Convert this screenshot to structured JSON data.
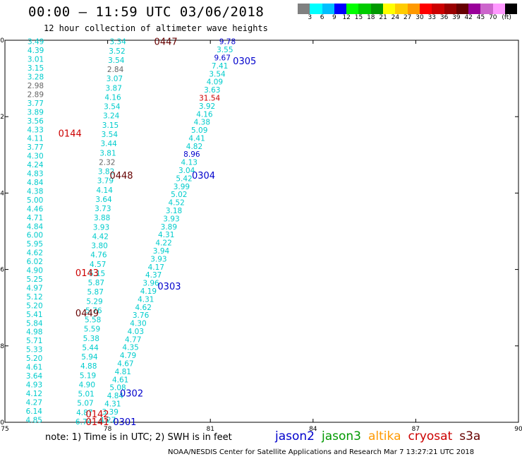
{
  "header": {
    "title": "00:00 – 11:59 UTC 03/06/2018",
    "subtitle": "12 hour collection of altimeter wave heights"
  },
  "colorbar": {
    "colors": [
      "#808080",
      "#00ffff",
      "#00bfff",
      "#0000ff",
      "#00ff00",
      "#00cc00",
      "#009900",
      "#ffff00",
      "#ffcc00",
      "#ff9900",
      "#ff0000",
      "#cc0000",
      "#990000",
      "#660000",
      "#990099",
      "#cc66cc",
      "#ff99ff",
      "#000000"
    ],
    "labels": [
      "3",
      "6",
      "9",
      "12",
      "15",
      "18",
      "21",
      "24",
      "27",
      "30",
      "33",
      "36",
      "39",
      "42",
      "45",
      "70",
      "(ft)"
    ]
  },
  "axes": {
    "x_ticks": [
      "75",
      "78",
      "81",
      "84",
      "87",
      "90"
    ],
    "y_ticks": [
      "0",
      "-2",
      "-4",
      "-6",
      "-8",
      "-10"
    ]
  },
  "chart_data": {
    "type": "scatter",
    "title": "",
    "xlabel": "",
    "ylabel": "",
    "xlim": [
      75,
      90
    ],
    "ylim": [
      -10,
      0
    ],
    "passes": [
      {
        "id": "0447",
        "color": "#660000",
        "lon": 79.7,
        "lat": -0.05
      },
      {
        "id": "0305",
        "color": "#0000cc",
        "lon": 82.0,
        "lat": -0.55
      },
      {
        "id": "0144",
        "color": "#cc0000",
        "lon": 76.9,
        "lat": -2.45
      },
      {
        "id": "0448",
        "color": "#660000",
        "lon": 78.4,
        "lat": -3.55
      },
      {
        "id": "0304",
        "color": "#0000cc",
        "lon": 80.8,
        "lat": -3.55
      },
      {
        "id": "0143",
        "color": "#cc0000",
        "lon": 77.4,
        "lat": -6.1
      },
      {
        "id": "0303",
        "color": "#0000cc",
        "lon": 79.8,
        "lat": -6.45
      },
      {
        "id": "0449",
        "color": "#660000",
        "lon": 77.4,
        "lat": -7.15
      },
      {
        "id": "0302",
        "color": "#0000cc",
        "lon": 78.7,
        "lat": -9.25
      },
      {
        "id": "0142",
        "color": "#cc0000",
        "lon": 77.7,
        "lat": -9.8
      },
      {
        "id": "0141",
        "color": "#cc0000",
        "lon": 77.7,
        "lat": -10.0
      },
      {
        "id": "0301",
        "color": "#0000cc",
        "lon": 78.5,
        "lat": -10.0
      }
    ],
    "tracks": [
      {
        "name": "track-a",
        "color": "#00cccc",
        "lon_start": 75.9,
        "lat_start": -0.05,
        "lon_end": 75.85,
        "lat_end": -9.95,
        "values": [
          "3.49",
          "4.39",
          "3.01",
          "3.15",
          "3.28",
          "2.98",
          "2.89",
          "3.77",
          "3.89",
          "3.56",
          "4.33",
          "4.11",
          "3.77",
          "4.30",
          "4.24",
          "4.83",
          "4.84",
          "4.38",
          "5.00",
          "4.46",
          "4.71",
          "4.84",
          "6.00",
          "5.95",
          "4.62",
          "6.02",
          "4.90",
          "5.25",
          "4.97",
          "5.12",
          "5.20",
          "5.41",
          "5.84",
          "4.98",
          "5.71",
          "5.33",
          "5.20",
          "4.61",
          "3.64",
          "4.93",
          "4.12",
          "4.27",
          "6.14",
          "4.85"
        ]
      },
      {
        "name": "track-b",
        "color": "#00cccc",
        "lon_start": 78.3,
        "lat_start": -0.05,
        "lon_end": 77.3,
        "lat_end": -10.0,
        "values": [
          "3.34",
          "3.52",
          "3.54",
          "2.84",
          "3.07",
          "3.87",
          "4.16",
          "3.54",
          "3.24",
          "3.15",
          "3.54",
          "3.44",
          "3.81",
          "2.32",
          "3.82",
          "3.79",
          "4.14",
          "3.64",
          "3.73",
          "3.88",
          "3.93",
          "4.42",
          "3.80",
          "4.76",
          "4.57",
          "5.15",
          "5.87",
          "5.87",
          "5.29",
          "5.76",
          "5.58",
          "5.59",
          "5.38",
          "5.44",
          "5.94",
          "4.88",
          "5.19",
          "4.90",
          "5.01",
          "5.07",
          "4.87",
          "6.74"
        ]
      },
      {
        "name": "track-c",
        "color": "#00cccc",
        "lon_start": 81.5,
        "lat_start": -0.05,
        "lon_end": 78.0,
        "lat_end": -9.95,
        "values": [
          "9.78",
          "3.55",
          "9.67",
          "7.41",
          "3.54",
          "4.09",
          "3.63",
          "31.54",
          "3.92",
          "4.16",
          "4.38",
          "5.09",
          "4.41",
          "4.82",
          "8.96",
          "4.13",
          "3.04",
          "5.42",
          "3.99",
          "5.02",
          "4.52",
          "3.18",
          "3.93",
          "3.89",
          "4.31",
          "4.22",
          "3.94",
          "3.93",
          "4.17",
          "4.37",
          "3.96",
          "4.19",
          "4.31",
          "4.62",
          "3.76",
          "4.30",
          "4.03",
          "4.77",
          "4.35",
          "4.79",
          "4.67",
          "4.81",
          "4.61",
          "5.08",
          "4.84",
          "4.31",
          "3.39",
          "4.27"
        ]
      }
    ],
    "highlight_values": {
      "31.54": "#cc0000",
      "2.84": "#666666",
      "2.32": "#666666",
      "2.98": "#666666",
      "2.89": "#666666",
      "9.78": "#0000cc",
      "9.67": "#0000cc",
      "8.96": "#0000cc",
      "7.41": "#00cccc"
    }
  },
  "footer": {
    "note": "note:  1) Time is in UTC;  2) SWH is in feet",
    "satellites": [
      {
        "name": "jason2",
        "color": "#0000cc"
      },
      {
        "name": "jason3",
        "color": "#009900"
      },
      {
        "name": "altika",
        "color": "#ff9900"
      },
      {
        "name": "cryosat",
        "color": "#cc0000"
      },
      {
        "name": "s3a",
        "color": "#660000"
      }
    ],
    "credit": "NOAA/NESDIS Center for Satellite Applications and Research    Mar  7 13:27:21 UTC 2018"
  }
}
